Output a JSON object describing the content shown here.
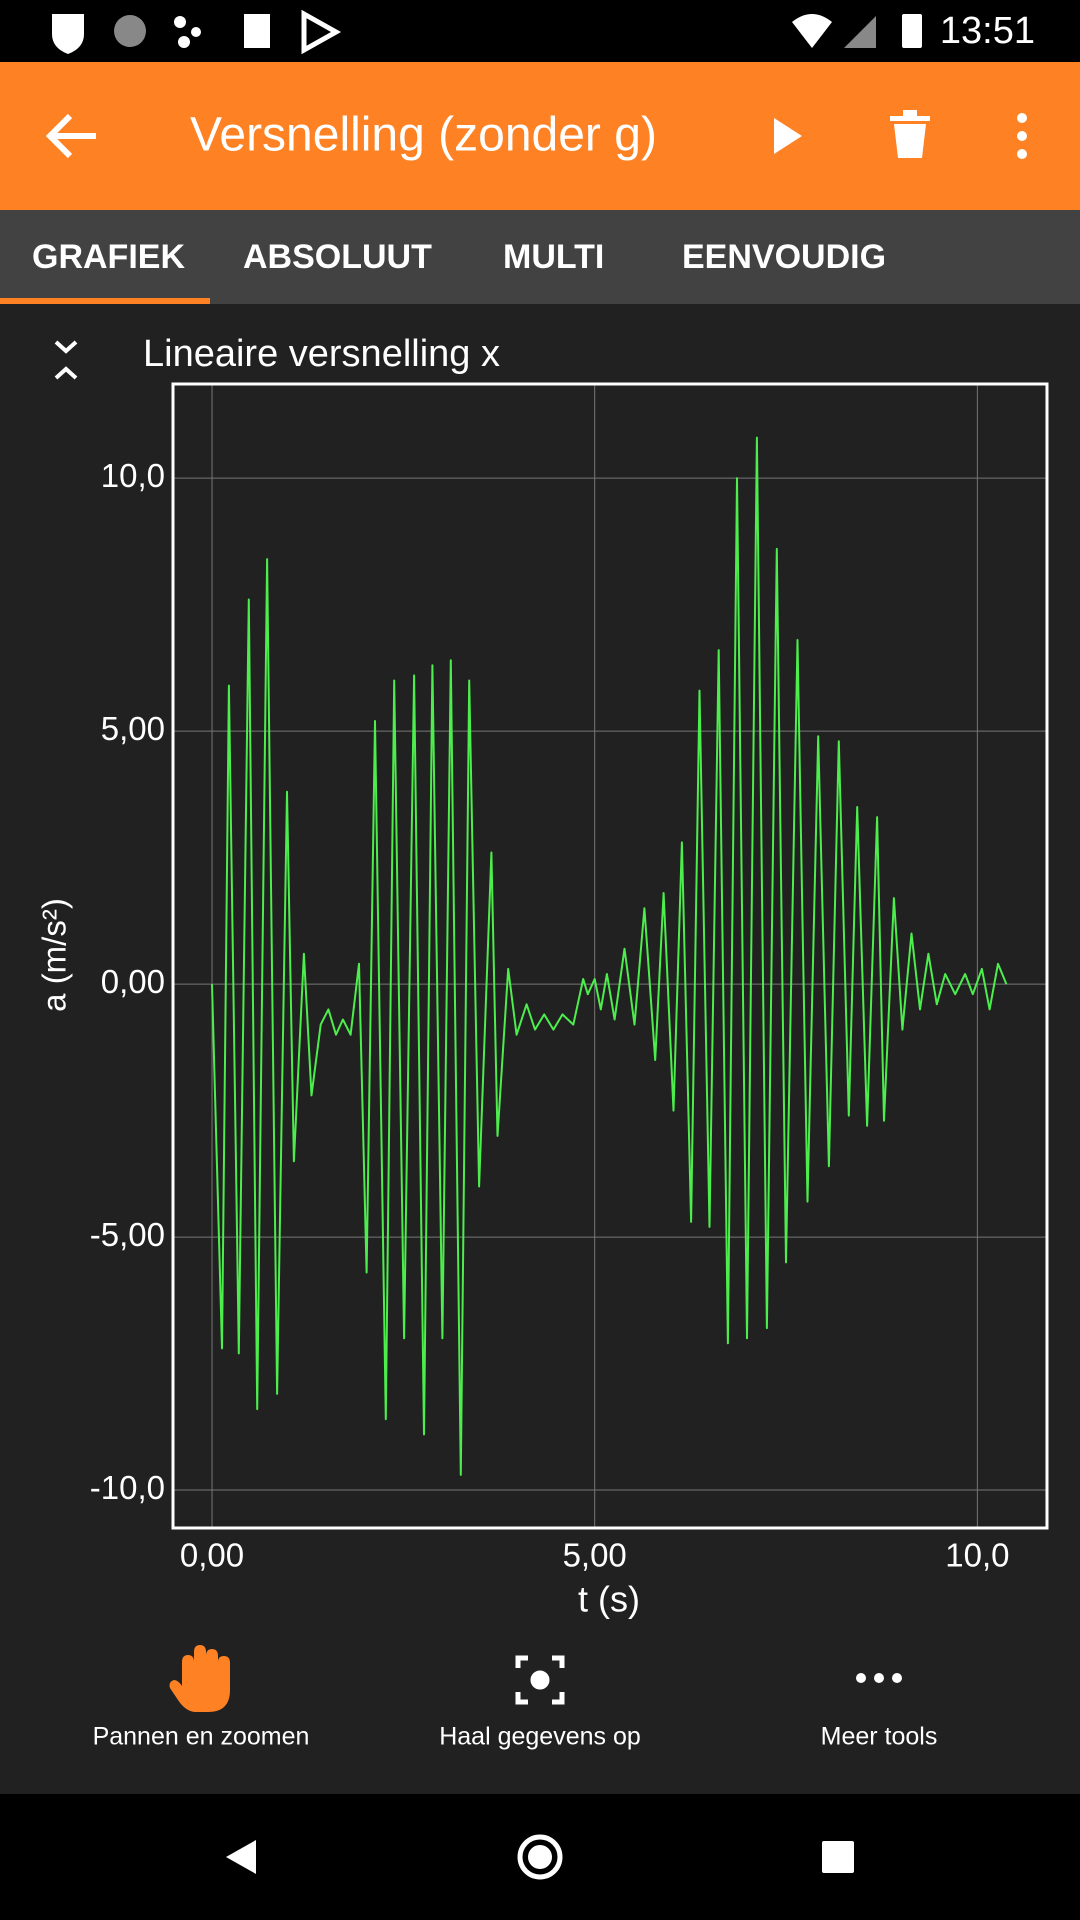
{
  "status": {
    "time": "13:51"
  },
  "header": {
    "title": "Versnelling (zonder g)"
  },
  "tabs": [
    "GRAFIEK",
    "ABSOLUUT",
    "MULTI",
    "EENVOUDIG"
  ],
  "tools": [
    "Pannen en zoomen",
    "Haal gegevens op",
    "Meer tools"
  ],
  "chart_data": {
    "type": "line",
    "title": "Lineaire versnelling x",
    "x_label": "t (s)",
    "y_label": "a (m/s²)",
    "xlim": [
      -0.51,
      10.91
    ],
    "ylim": [
      -10.75,
      11.86
    ],
    "xticks": [
      {
        "value": 0,
        "label": "0,00"
      },
      {
        "value": 5,
        "label": "5,00"
      },
      {
        "value": 10,
        "label": "10,0"
      }
    ],
    "yticks": [
      {
        "value": -10,
        "label": "-10,0"
      },
      {
        "value": -5,
        "label": "-5,00"
      },
      {
        "value": 0,
        "label": "0,00"
      },
      {
        "value": 5,
        "label": "5,00"
      },
      {
        "value": 10,
        "label": "10,0"
      }
    ],
    "grid": true,
    "x": [
      0,
      0.13,
      0.22,
      0.35,
      0.48,
      0.59,
      0.72,
      0.85,
      0.98,
      1.07,
      1.2,
      1.3,
      1.42,
      1.52,
      1.62,
      1.71,
      1.81,
      1.92,
      2.02,
      2.13,
      2.27,
      2.38,
      2.51,
      2.64,
      2.77,
      2.88,
      3.01,
      3.12,
      3.25,
      3.36,
      3.49,
      3.65,
      3.73,
      3.87,
      3.98,
      4.11,
      4.22,
      4.34,
      4.46,
      4.58,
      4.72,
      4.85,
      4.91,
      5.0,
      5.08,
      5.16,
      5.26,
      5.39,
      5.52,
      5.65,
      5.79,
      5.9,
      6.03,
      6.14,
      6.26,
      6.37,
      6.5,
      6.62,
      6.74,
      6.86,
      6.99,
      7.12,
      7.25,
      7.38,
      7.5,
      7.65,
      7.78,
      7.92,
      8.06,
      8.19,
      8.32,
      8.43,
      8.56,
      8.69,
      8.78,
      8.91,
      9.02,
      9.14,
      9.25,
      9.36,
      9.47,
      9.58,
      9.71,
      9.84,
      9.94,
      10.06,
      10.16,
      10.27,
      10.38
    ],
    "series": [
      {
        "color": "#4ced4c",
        "values": [
          0,
          -7.2,
          5.9,
          -7.3,
          7.6,
          -8.4,
          8.4,
          -8.1,
          3.8,
          -3.5,
          0.6,
          -2.2,
          -0.8,
          -0.5,
          -1.0,
          -0.7,
          -1.0,
          0.4,
          -5.7,
          5.2,
          -8.6,
          6.0,
          -7.0,
          6.1,
          -8.9,
          6.3,
          -7.0,
          6.4,
          -9.7,
          6.0,
          -4.0,
          2.6,
          -3.0,
          0.3,
          -1.0,
          -0.4,
          -0.9,
          -0.6,
          -0.9,
          -0.6,
          -0.8,
          0.1,
          -0.2,
          0.1,
          -0.5,
          0.2,
          -0.7,
          0.7,
          -0.8,
          1.5,
          -1.5,
          1.8,
          -2.5,
          2.8,
          -4.7,
          5.8,
          -4.8,
          6.6,
          -7.1,
          10.0,
          -7.0,
          10.8,
          -6.8,
          8.6,
          -5.5,
          6.8,
          -4.3,
          4.9,
          -3.6,
          4.8,
          -2.6,
          3.5,
          -2.8,
          3.3,
          -2.7,
          1.7,
          -0.9,
          1.0,
          -0.5,
          0.6,
          -0.4,
          0.2,
          -0.2,
          0.2,
          -0.2,
          0.3,
          -0.5,
          0.4,
          0.0
        ]
      }
    ]
  }
}
